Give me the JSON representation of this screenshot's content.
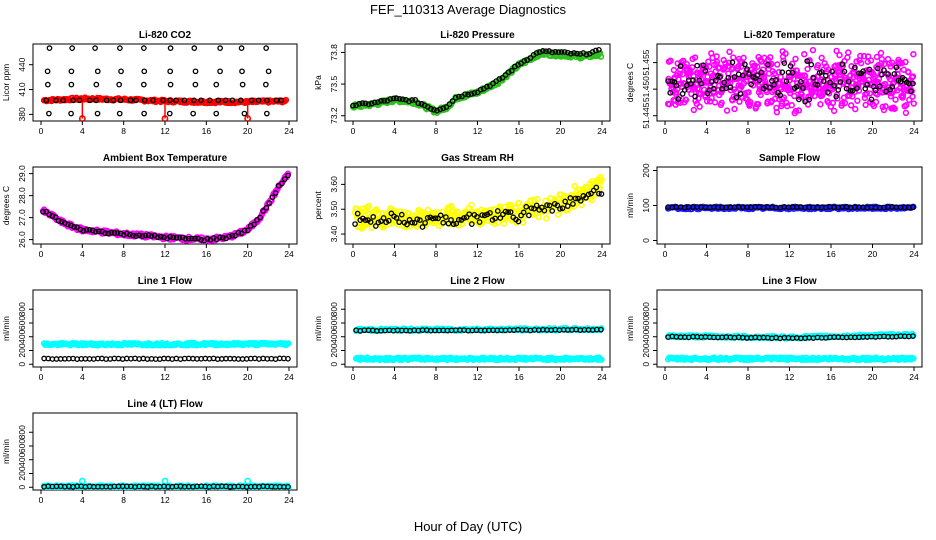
{
  "figure": {
    "title": "FEF_110313  Average Diagnostics",
    "xlabel": "Hour of Day (UTC)"
  },
  "colors": {
    "red": "#ff0000",
    "green": "#2fbf1f",
    "magenta": "#ff00ff",
    "yellow": "#ffff00",
    "blue": "#1a1aff",
    "cyan": "#00ffff",
    "black": "#000000"
  },
  "chart_data": [
    {
      "type": "scatter",
      "title": "Li-820 CO2",
      "ylabel": "Licor ppm",
      "xlim": [
        0,
        24
      ],
      "ylim": [
        372,
        465
      ],
      "xticks": [
        "0",
        "4",
        "8",
        "12",
        "16",
        "20",
        "24"
      ],
      "yticks": [
        "380",
        "410",
        "440"
      ],
      "series": [
        {
          "name": "raw",
          "color": "red",
          "pattern": "band",
          "values": [
            [
              0.3,
              397
            ],
            [
              4,
              399
            ],
            [
              8,
              398
            ],
            [
              12,
              396
            ],
            [
              16,
              395
            ],
            [
              20,
              395
            ],
            [
              23.8,
              396
            ]
          ]
        },
        {
          "name": "flags",
          "color": "red",
          "pattern": "spikes",
          "values": [
            [
              4,
              375
            ],
            [
              12,
              375
            ],
            [
              20,
              375
            ]
          ]
        },
        {
          "name": "averages",
          "color": "black",
          "pattern": "tiers",
          "tiers": [
            381,
            397,
            416,
            432,
            460
          ]
        }
      ]
    },
    {
      "type": "scatter",
      "title": "Li-820 Pressure",
      "ylabel": "kPa",
      "xlim": [
        0,
        24
      ],
      "ylim": [
        73.15,
        73.88
      ],
      "xticks": [
        "0",
        "4",
        "8",
        "12",
        "16",
        "20",
        "24"
      ],
      "yticks": [
        "73.2",
        "73.5",
        "73.8"
      ],
      "series": [
        {
          "name": "raw",
          "color": "green",
          "pattern": "trend",
          "values": [
            [
              0,
              73.29
            ],
            [
              2,
              73.31
            ],
            [
              4,
              73.35
            ],
            [
              6,
              73.33
            ],
            [
              8,
              73.24
            ],
            [
              9,
              73.28
            ],
            [
              10,
              73.37
            ],
            [
              12,
              73.42
            ],
            [
              14,
              73.52
            ],
            [
              16,
              73.68
            ],
            [
              18,
              73.79
            ],
            [
              20,
              73.78
            ],
            [
              22,
              73.76
            ],
            [
              24,
              73.78
            ]
          ]
        },
        {
          "name": "averages",
          "color": "black",
          "pattern": "trend",
          "values": [
            [
              0,
              73.3
            ],
            [
              2,
              73.32
            ],
            [
              4,
              73.36
            ],
            [
              6,
              73.34
            ],
            [
              8,
              73.25
            ],
            [
              9,
              73.29
            ],
            [
              10,
              73.38
            ],
            [
              12,
              73.43
            ],
            [
              14,
              73.53
            ],
            [
              16,
              73.69
            ],
            [
              18,
              73.81
            ],
            [
              20,
              73.8
            ],
            [
              22,
              73.78
            ],
            [
              24,
              73.82
            ]
          ]
        }
      ]
    },
    {
      "type": "scatter",
      "title": "Li-820 Temperature",
      "ylabel": "degrees C",
      "xlim": [
        0,
        24
      ],
      "ylim": [
        51.444,
        51.4585
      ],
      "xticks": [
        "0",
        "4",
        "8",
        "12",
        "16",
        "20",
        "24"
      ],
      "yticks": [
        "51.445",
        "51.450",
        "51.455"
      ],
      "series": [
        {
          "name": "raw",
          "color": "magenta",
          "pattern": "noise",
          "center": 51.4515,
          "spread": 0.0045
        },
        {
          "name": "averages",
          "color": "black",
          "pattern": "noise",
          "center": 51.4515,
          "spread": 0.003
        }
      ]
    },
    {
      "type": "scatter",
      "title": "Ambient Box Temperature",
      "ylabel": "degrees C",
      "xlim": [
        0,
        24
      ],
      "ylim": [
        25.8,
        29.3
      ],
      "xticks": [
        "0",
        "4",
        "8",
        "12",
        "16",
        "20",
        "24"
      ],
      "yticks": [
        "26.0",
        "27.0",
        "28.0",
        "29.0"
      ],
      "series": [
        {
          "name": "raw",
          "color": "magenta",
          "pattern": "trend",
          "values": [
            [
              0.2,
              27.3
            ],
            [
              1,
              27.1
            ],
            [
              2,
              26.8
            ],
            [
              3,
              26.6
            ],
            [
              4,
              26.45
            ],
            [
              6,
              26.35
            ],
            [
              8,
              26.25
            ],
            [
              10,
              26.18
            ],
            [
              12,
              26.1
            ],
            [
              14,
              26.05
            ],
            [
              16,
              26.0
            ],
            [
              18,
              26.1
            ],
            [
              19,
              26.25
            ],
            [
              20,
              26.45
            ],
            [
              21,
              26.9
            ],
            [
              22,
              27.6
            ],
            [
              23,
              28.4
            ],
            [
              24,
              29.0
            ]
          ]
        },
        {
          "name": "averages",
          "color": "black",
          "pattern": "trend",
          "values": [
            [
              0.2,
              27.3
            ],
            [
              1,
              27.1
            ],
            [
              2,
              26.8
            ],
            [
              3,
              26.6
            ],
            [
              4,
              26.45
            ],
            [
              6,
              26.35
            ],
            [
              8,
              26.25
            ],
            [
              10,
              26.18
            ],
            [
              12,
              26.1
            ],
            [
              14,
              26.05
            ],
            [
              16,
              26.0
            ],
            [
              18,
              26.1
            ],
            [
              19,
              26.25
            ],
            [
              20,
              26.45
            ],
            [
              21,
              26.9
            ],
            [
              22,
              27.6
            ],
            [
              23,
              28.4
            ],
            [
              24,
              29.0
            ]
          ]
        }
      ]
    },
    {
      "type": "scatter",
      "title": "Gas Stream RH",
      "ylabel": "percent",
      "xlim": [
        0,
        24
      ],
      "ylim": [
        3.36,
        3.67
      ],
      "xticks": [
        "0",
        "4",
        "8",
        "12",
        "16",
        "20",
        "24"
      ],
      "yticks": [
        "3.40",
        "3.50",
        "3.60"
      ],
      "series": [
        {
          "name": "raw",
          "color": "yellow",
          "pattern": "noisytrend",
          "values": [
            [
              0,
              3.47
            ],
            [
              8,
              3.46
            ],
            [
              16,
              3.49
            ],
            [
              20,
              3.52
            ],
            [
              24,
              3.6
            ]
          ],
          "spread": 0.05
        },
        {
          "name": "averages",
          "color": "black",
          "pattern": "noisytrend",
          "values": [
            [
              0,
              3.46
            ],
            [
              8,
              3.45
            ],
            [
              16,
              3.48
            ],
            [
              20,
              3.52
            ],
            [
              24,
              3.58
            ]
          ],
          "spread": 0.03
        }
      ]
    },
    {
      "type": "scatter",
      "title": "Sample Flow",
      "ylabel": "ml/min",
      "xlim": [
        0,
        24
      ],
      "ylim": [
        -10,
        210
      ],
      "xticks": [
        "0",
        "4",
        "8",
        "12",
        "16",
        "20",
        "24"
      ],
      "yticks": [
        "0",
        "100",
        "200"
      ],
      "series": [
        {
          "name": "raw",
          "color": "blue",
          "pattern": "band",
          "values": [
            [
              0.3,
              93
            ],
            [
              24,
              93
            ]
          ]
        },
        {
          "name": "averages",
          "color": "black",
          "pattern": "band",
          "values": [
            [
              0.3,
              95
            ],
            [
              24,
              95
            ]
          ]
        }
      ]
    },
    {
      "type": "scatter",
      "title": "Line 1 Flow",
      "ylabel": "ml/min",
      "xlim": [
        0,
        24
      ],
      "ylim": [
        -40,
        1080
      ],
      "xticks": [
        "0",
        "4",
        "8",
        "12",
        "16",
        "20",
        "24"
      ],
      "yticks": [
        "0",
        "200",
        "400",
        "600",
        "800"
      ],
      "series": [
        {
          "name": "raw",
          "color": "cyan",
          "pattern": "band",
          "values": [
            [
              0.3,
              290
            ],
            [
              24,
              295
            ]
          ]
        },
        {
          "name": "averages",
          "color": "black",
          "pattern": "band",
          "values": [
            [
              0.3,
              80
            ],
            [
              24,
              80
            ]
          ]
        }
      ]
    },
    {
      "type": "scatter",
      "title": "Line 2 Flow",
      "ylabel": "ml/min",
      "xlim": [
        0,
        24
      ],
      "ylim": [
        -40,
        1080
      ],
      "xticks": [
        "0",
        "4",
        "8",
        "12",
        "16",
        "20",
        "24"
      ],
      "yticks": [
        "0",
        "200",
        "400",
        "600",
        "800"
      ],
      "series": [
        {
          "name": "raw",
          "color": "cyan",
          "pattern": "band",
          "values": [
            [
              0.3,
              500
            ],
            [
              24,
              510
            ]
          ]
        },
        {
          "name": "raw-low",
          "color": "cyan",
          "pattern": "band",
          "values": [
            [
              0.3,
              80
            ],
            [
              24,
              80
            ]
          ]
        },
        {
          "name": "averages",
          "color": "black",
          "pattern": "band",
          "values": [
            [
              0.3,
              490
            ],
            [
              24,
              500
            ]
          ]
        }
      ]
    },
    {
      "type": "scatter",
      "title": "Line 3 Flow",
      "ylabel": "ml/min",
      "xlim": [
        0,
        24
      ],
      "ylim": [
        -40,
        1080
      ],
      "xticks": [
        "0",
        "4",
        "8",
        "12",
        "16",
        "20",
        "24"
      ],
      "yticks": [
        "0",
        "200",
        "400",
        "600",
        "800"
      ],
      "series": [
        {
          "name": "raw",
          "color": "cyan",
          "pattern": "band",
          "values": [
            [
              0.3,
              410
            ],
            [
              12,
              390
            ],
            [
              24,
              430
            ]
          ]
        },
        {
          "name": "raw-low",
          "color": "cyan",
          "pattern": "band",
          "values": [
            [
              0.3,
              80
            ],
            [
              24,
              80
            ]
          ]
        },
        {
          "name": "averages",
          "color": "black",
          "pattern": "band",
          "values": [
            [
              0.3,
              400
            ],
            [
              12,
              380
            ],
            [
              24,
              410
            ]
          ]
        }
      ]
    },
    {
      "type": "scatter",
      "title": "Line 4 (LT) Flow",
      "ylabel": "ml/min",
      "xlim": [
        0,
        24
      ],
      "ylim": [
        -40,
        1080
      ],
      "xticks": [
        "0",
        "4",
        "8",
        "12",
        "16",
        "20",
        "24"
      ],
      "yticks": [
        "0",
        "200",
        "400",
        "600",
        "800"
      ],
      "series": [
        {
          "name": "raw",
          "color": "cyan",
          "pattern": "band",
          "values": [
            [
              0.3,
              10
            ],
            [
              24,
              10
            ]
          ]
        },
        {
          "name": "spikes",
          "color": "cyan",
          "pattern": "spikes",
          "values": [
            [
              4,
              90
            ],
            [
              12,
              90
            ],
            [
              20,
              90
            ]
          ]
        },
        {
          "name": "averages",
          "color": "black",
          "pattern": "band",
          "values": [
            [
              0.3,
              10
            ],
            [
              24,
              10
            ]
          ]
        }
      ]
    }
  ]
}
